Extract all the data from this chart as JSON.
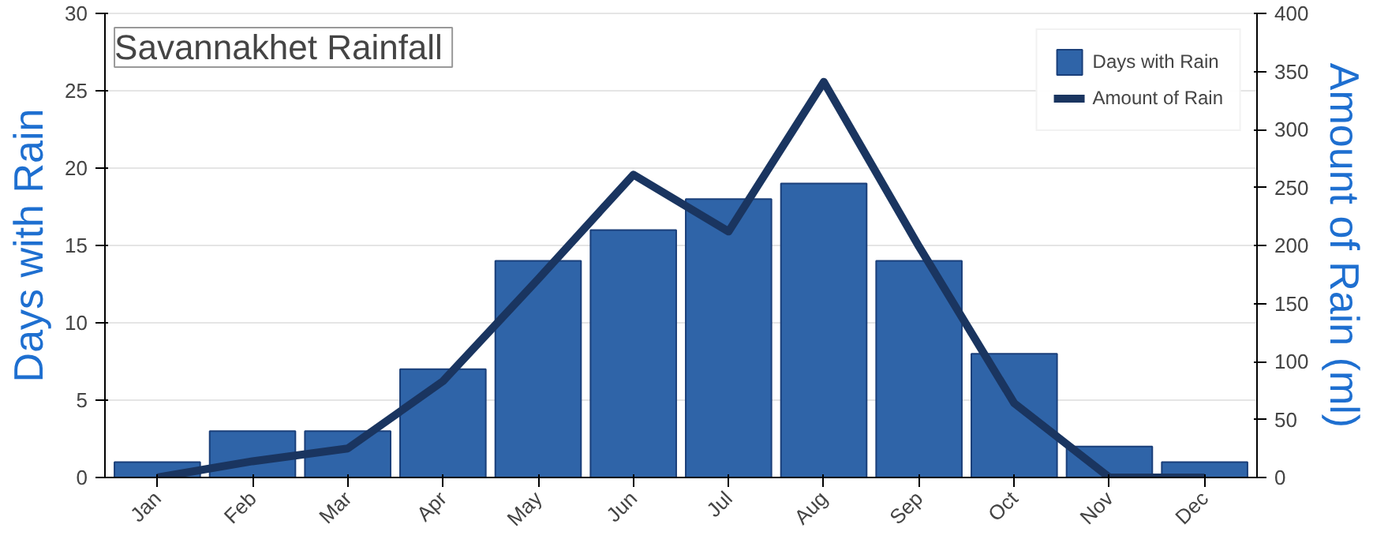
{
  "chart_data": {
    "type": "bar",
    "title": "Savannakhet  Rainfall",
    "ylabel": "Days with Rain",
    "y2label": "Amount of Rain (ml)",
    "categories": [
      "Jan",
      "Feb",
      "Mar",
      "Apr",
      "May",
      "Jun",
      "Jul",
      "Aug",
      "Sep",
      "Oct",
      "Nov",
      "Dec"
    ],
    "series": [
      {
        "name": "Days with Rain",
        "color": "#2f64a8",
        "values": [
          1,
          3,
          3,
          7,
          14,
          16,
          18,
          19,
          14,
          8,
          2,
          1
        ]
      },
      {
        "name": "Amount of Rain",
        "type": "line",
        "axis": "y2",
        "color": "#1a3560",
        "values": [
          0,
          14,
          25,
          83,
          171,
          261,
          212,
          341,
          199,
          64,
          0,
          0
        ]
      }
    ],
    "ylim": [
      0,
      30
    ],
    "yticks": [
      0,
      5,
      10,
      15,
      20,
      25,
      30
    ],
    "y2lim": [
      0,
      400
    ],
    "y2ticks": [
      0,
      50,
      100,
      150,
      200,
      250,
      300,
      350,
      400
    ],
    "grid": "y",
    "legend": "top right"
  }
}
